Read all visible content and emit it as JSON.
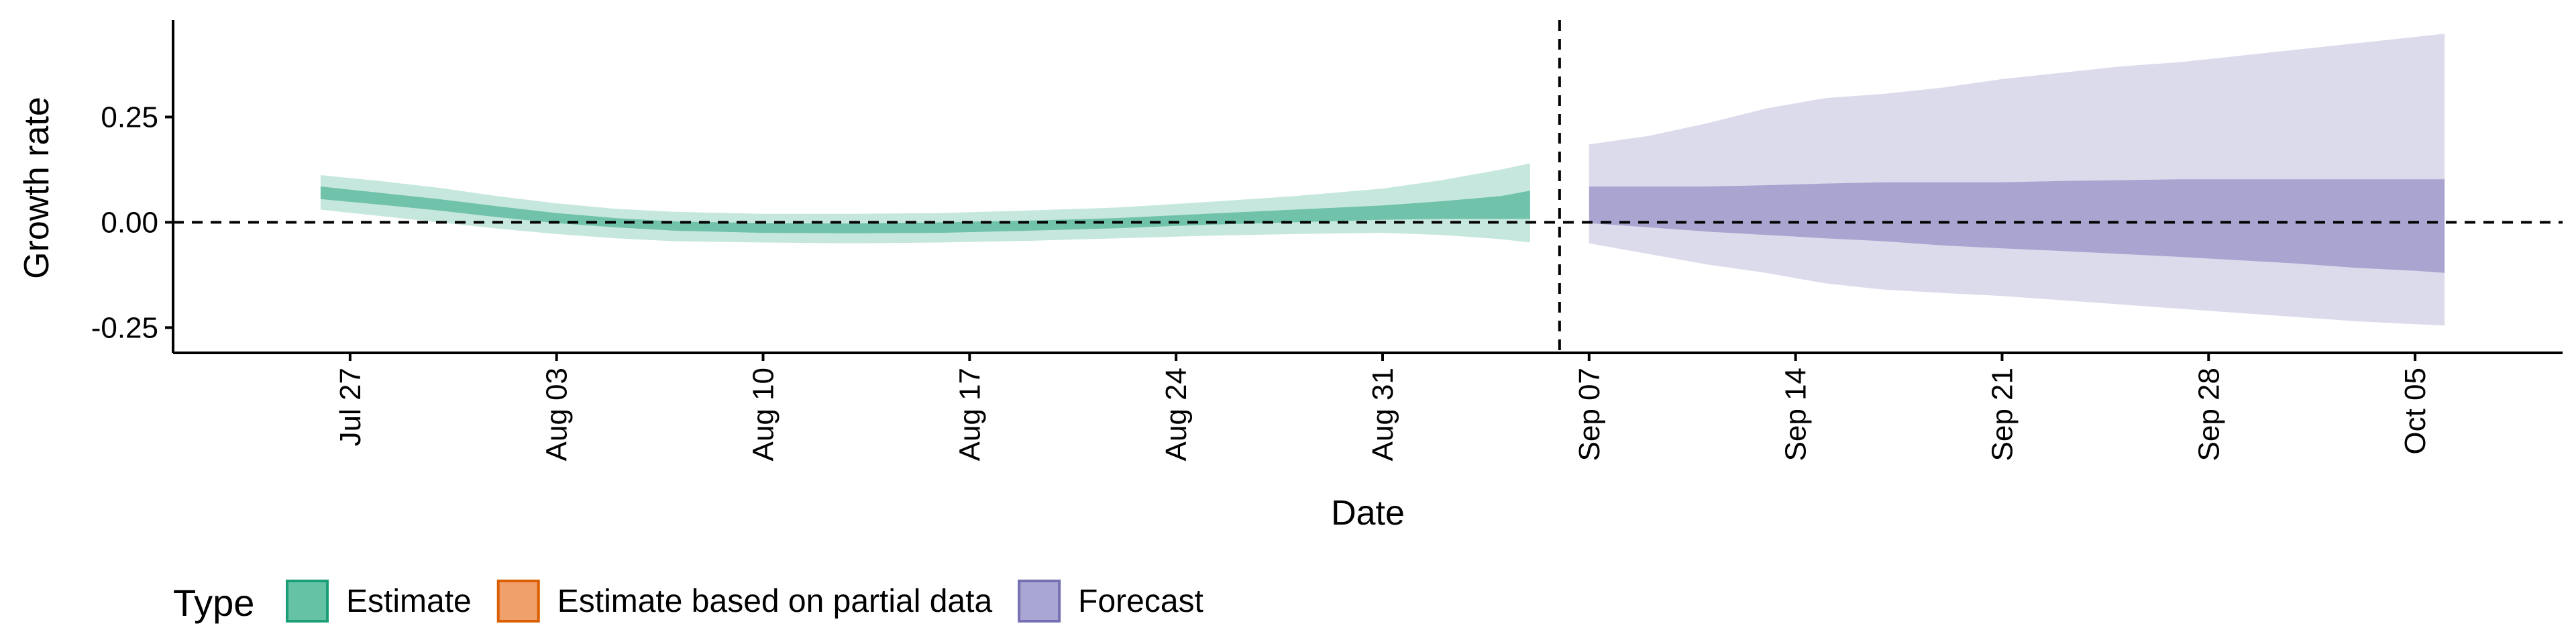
{
  "chart_data": {
    "type": "area",
    "xlabel": "Date",
    "ylabel": "Growth rate",
    "x_range": [
      "2020-07-21",
      "2020-10-10"
    ],
    "ylim": [
      -0.31,
      0.48
    ],
    "grid": false,
    "reference_lines": {
      "horizontal_y": 0,
      "vertical_date": "2020-09-06",
      "style": "dashed"
    },
    "x_ticks": [
      {
        "date": "2020-07-27",
        "label": "Jul 27"
      },
      {
        "date": "2020-08-03",
        "label": "Aug 03"
      },
      {
        "date": "2020-08-10",
        "label": "Aug 10"
      },
      {
        "date": "2020-08-17",
        "label": "Aug 17"
      },
      {
        "date": "2020-08-24",
        "label": "Aug 24"
      },
      {
        "date": "2020-08-31",
        "label": "Aug 31"
      },
      {
        "date": "2020-09-07",
        "label": "Sep 07"
      },
      {
        "date": "2020-09-14",
        "label": "Sep 14"
      },
      {
        "date": "2020-09-21",
        "label": "Sep 21"
      },
      {
        "date": "2020-09-28",
        "label": "Sep 28"
      },
      {
        "date": "2020-10-05",
        "label": "Oct 05"
      }
    ],
    "y_ticks": [
      {
        "value": 0.25,
        "label": "0.25"
      },
      {
        "value": 0.0,
        "label": "0.00"
      },
      {
        "value": -0.25,
        "label": "-0.25"
      }
    ],
    "legend": {
      "title": "Type",
      "position": "bottom-left",
      "entries": [
        {
          "label": "Estimate",
          "fill": "#66c2a5",
          "border": "#1b9e77"
        },
        {
          "label": "Estimate based on partial data",
          "fill": "#f0a06a",
          "border": "#d95f02"
        },
        {
          "label": "Forecast",
          "fill": "#a9a6d3",
          "border": "#7570b3"
        }
      ]
    },
    "series": [
      {
        "type_key": "Estimate",
        "color_outer": "#1b9e77",
        "color_inner": "#1b9e77",
        "points": [
          {
            "date": "2020-07-26",
            "lo90": 0.03,
            "lo50": 0.055,
            "hi50": 0.085,
            "hi90": 0.112
          },
          {
            "date": "2020-07-28",
            "lo90": 0.015,
            "lo50": 0.042,
            "hi50": 0.07,
            "hi90": 0.098
          },
          {
            "date": "2020-07-30",
            "lo90": 0.0,
            "lo50": 0.028,
            "hi50": 0.055,
            "hi90": 0.082
          },
          {
            "date": "2020-08-01",
            "lo90": -0.015,
            "lo50": 0.012,
            "hi50": 0.038,
            "hi90": 0.062
          },
          {
            "date": "2020-08-03",
            "lo90": -0.028,
            "lo50": -0.002,
            "hi50": 0.022,
            "hi90": 0.045
          },
          {
            "date": "2020-08-05",
            "lo90": -0.038,
            "lo50": -0.012,
            "hi50": 0.01,
            "hi90": 0.032
          },
          {
            "date": "2020-08-07",
            "lo90": -0.045,
            "lo50": -0.02,
            "hi50": 0.002,
            "hi90": 0.025
          },
          {
            "date": "2020-08-10",
            "lo90": -0.048,
            "lo50": -0.025,
            "hi50": -0.002,
            "hi90": 0.02
          },
          {
            "date": "2020-08-13",
            "lo90": -0.05,
            "lo50": -0.026,
            "hi50": -0.003,
            "hi90": 0.02
          },
          {
            "date": "2020-08-16",
            "lo90": -0.048,
            "lo50": -0.025,
            "hi50": 0.0,
            "hi90": 0.022
          },
          {
            "date": "2020-08-19",
            "lo90": -0.044,
            "lo50": -0.02,
            "hi50": 0.004,
            "hi90": 0.028
          },
          {
            "date": "2020-08-22",
            "lo90": -0.038,
            "lo50": -0.014,
            "hi50": 0.01,
            "hi90": 0.035
          },
          {
            "date": "2020-08-25",
            "lo90": -0.032,
            "lo50": -0.006,
            "hi50": 0.02,
            "hi90": 0.048
          },
          {
            "date": "2020-08-28",
            "lo90": -0.028,
            "lo50": 0.0,
            "hi50": 0.03,
            "hi90": 0.062
          },
          {
            "date": "2020-08-31",
            "lo90": -0.025,
            "lo50": 0.006,
            "hi50": 0.04,
            "hi90": 0.08
          },
          {
            "date": "2020-09-02",
            "lo90": -0.03,
            "lo50": 0.008,
            "hi50": 0.05,
            "hi90": 0.1
          },
          {
            "date": "2020-09-04",
            "lo90": -0.04,
            "lo50": 0.008,
            "hi50": 0.062,
            "hi90": 0.125
          },
          {
            "date": "2020-09-05",
            "lo90": -0.048,
            "lo50": 0.008,
            "hi50": 0.075,
            "hi90": 0.14
          }
        ]
      },
      {
        "type_key": "Forecast",
        "color_outer": "#7570b3",
        "color_inner": "#7570b3",
        "points": [
          {
            "date": "2020-09-07",
            "lo90": -0.05,
            "lo50": -0.002,
            "hi50": 0.085,
            "hi90": 0.185
          },
          {
            "date": "2020-09-09",
            "lo90": -0.075,
            "lo50": -0.012,
            "hi50": 0.085,
            "hi90": 0.205
          },
          {
            "date": "2020-09-11",
            "lo90": -0.1,
            "lo50": -0.022,
            "hi50": 0.085,
            "hi90": 0.235
          },
          {
            "date": "2020-09-13",
            "lo90": -0.12,
            "lo50": -0.03,
            "hi50": 0.088,
            "hi90": 0.27
          },
          {
            "date": "2020-09-15",
            "lo90": -0.145,
            "lo50": -0.038,
            "hi50": 0.092,
            "hi90": 0.295
          },
          {
            "date": "2020-09-17",
            "lo90": -0.16,
            "lo50": -0.045,
            "hi50": 0.095,
            "hi90": 0.305
          },
          {
            "date": "2020-09-19",
            "lo90": -0.168,
            "lo50": -0.055,
            "hi50": 0.095,
            "hi90": 0.32
          },
          {
            "date": "2020-09-21",
            "lo90": -0.175,
            "lo50": -0.062,
            "hi50": 0.095,
            "hi90": 0.34
          },
          {
            "date": "2020-09-23",
            "lo90": -0.185,
            "lo50": -0.068,
            "hi50": 0.098,
            "hi90": 0.355
          },
          {
            "date": "2020-09-25",
            "lo90": -0.195,
            "lo50": -0.075,
            "hi50": 0.1,
            "hi90": 0.37
          },
          {
            "date": "2020-09-27",
            "lo90": -0.205,
            "lo50": -0.082,
            "hi50": 0.102,
            "hi90": 0.38
          },
          {
            "date": "2020-09-29",
            "lo90": -0.215,
            "lo50": -0.09,
            "hi50": 0.102,
            "hi90": 0.395
          },
          {
            "date": "2020-10-01",
            "lo90": -0.225,
            "lo50": -0.098,
            "hi50": 0.102,
            "hi90": 0.41
          },
          {
            "date": "2020-10-03",
            "lo90": -0.235,
            "lo50": -0.108,
            "hi50": 0.102,
            "hi90": 0.425
          },
          {
            "date": "2020-10-05",
            "lo90": -0.242,
            "lo50": -0.115,
            "hi50": 0.102,
            "hi90": 0.44
          },
          {
            "date": "2020-10-06",
            "lo90": -0.245,
            "lo50": -0.12,
            "hi50": 0.102,
            "hi90": 0.448
          }
        ]
      }
    ]
  }
}
